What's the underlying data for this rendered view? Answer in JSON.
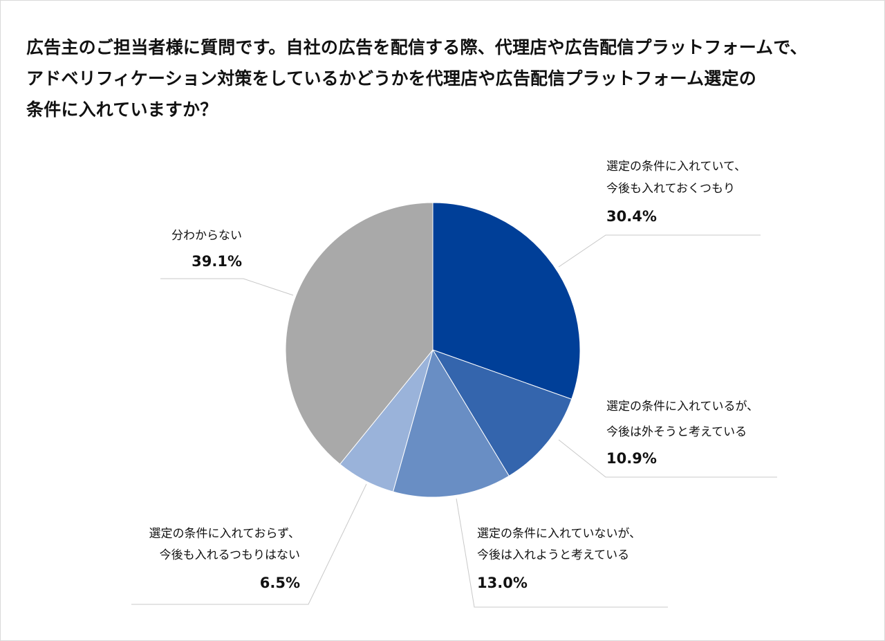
{
  "title_lines": [
    "広告主のご担当者様に質問です。自社の広告を配信する際、代理店や広告配信プラットフォームで、",
    "アドベリフィケーション対策をしているかどうかを代理店や広告配信プラットフォーム選定の",
    "条件に入れていますか？"
  ],
  "chart_data": {
    "type": "pie",
    "title": "広告主のご担当者様に質問です。自社の広告を配信する際、代理店や広告配信プラットフォームで、アドベリフィケーション対策をしているかどうかを代理店や広告配信プラットフォーム選定の条件に入れていますか？",
    "slices": [
      {
        "label_lines": [
          "選定の条件に入れていて、",
          "今後も入れておくつもり"
        ],
        "value": 30.4,
        "value_label": "30.4%",
        "color": "#003f98"
      },
      {
        "label_lines": [
          "選定の条件に入れているが、",
          "今後は外そうと考えている"
        ],
        "value": 10.9,
        "value_label": "10.9%",
        "color": "#3465ad"
      },
      {
        "label_lines": [
          "選定の条件に入れていないが、",
          "今後は入れようと考えている"
        ],
        "value": 13.0,
        "value_label": "13.0%",
        "color": "#698ec4"
      },
      {
        "label_lines": [
          "選定の条件に入れておらず、",
          "今後も入れるつもりはない"
        ],
        "value": 6.5,
        "value_label": "6.5%",
        "color": "#9ab3da"
      },
      {
        "label_lines": [
          "分わからない"
        ],
        "value": 39.1,
        "value_label": "39.1%",
        "color": "#a9a9a9"
      }
    ],
    "start_angle": "12 o'clock",
    "direction": "clockwise",
    "leader_color": "#c8c8c8"
  }
}
